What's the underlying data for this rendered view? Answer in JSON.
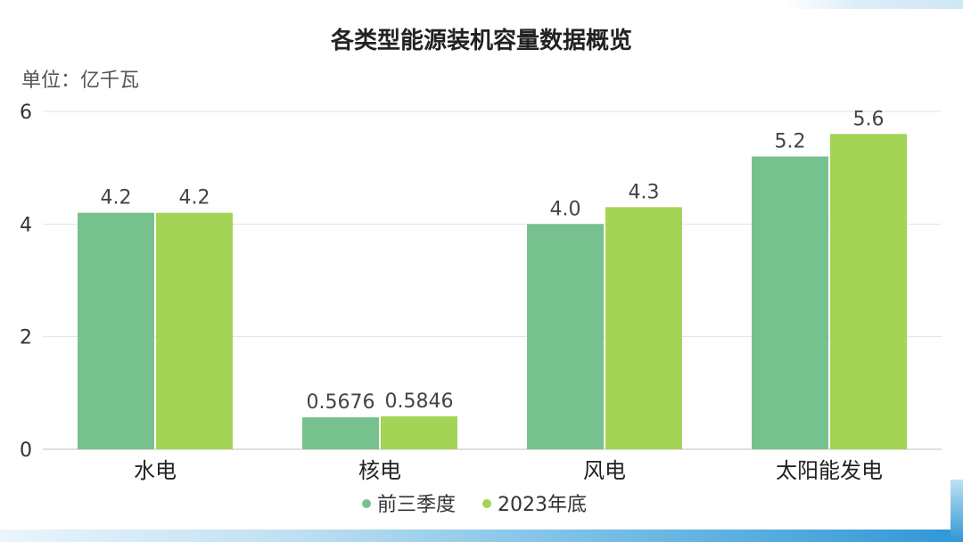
{
  "chart_data": {
    "type": "bar",
    "title": "各类型能源装机容量数据概览",
    "unit_label": "单位：亿千瓦",
    "categories": [
      "水电",
      "核电",
      "风电",
      "太阳能发电"
    ],
    "series": [
      {
        "name": "前三季度",
        "color": "#77c18e",
        "values": [
          4.2,
          0.5676,
          4.0,
          5.2
        ],
        "labels": [
          "4.2",
          "0.5676",
          "4.0",
          "5.2"
        ]
      },
      {
        "name": "2023年底",
        "color": "#a3d456",
        "values": [
          4.2,
          0.5846,
          4.3,
          5.6
        ],
        "labels": [
          "4.2",
          "0.5846",
          "4.3",
          "5.6"
        ]
      }
    ],
    "yticks": [
      "0",
      "2",
      "4",
      "6"
    ],
    "ylim": [
      0,
      6
    ],
    "grid": true,
    "legend_position": "bottom"
  }
}
